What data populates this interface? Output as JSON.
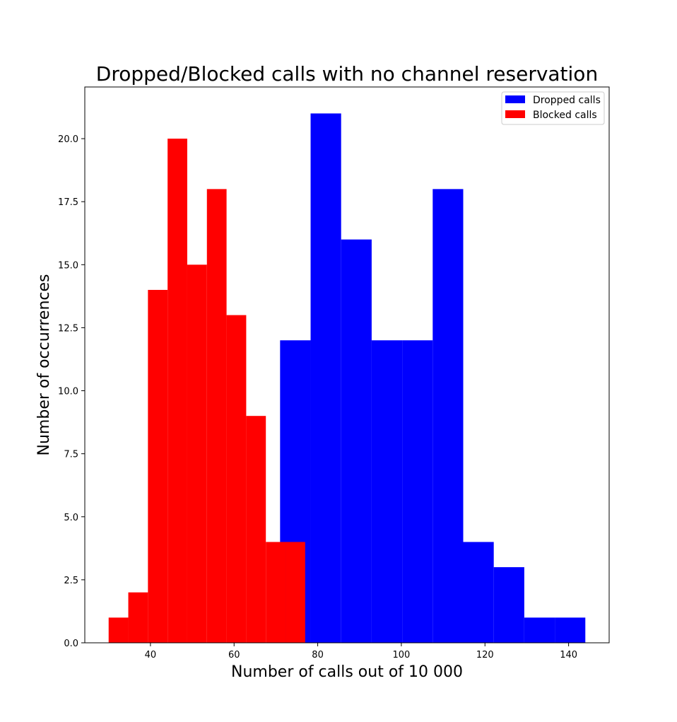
{
  "chart_data": {
    "type": "bar",
    "title": "Dropped/Blocked calls with no channel reservation",
    "xlabel": "Number of calls out of 10 000",
    "ylabel": "Number of occurrences",
    "xlim": [
      24.3,
      149.7
    ],
    "ylim": [
      0,
      22.05
    ],
    "xticks": [
      40,
      60,
      80,
      100,
      120,
      140
    ],
    "xtick_labels": [
      "40",
      "60",
      "80",
      "100",
      "120",
      "140"
    ],
    "yticks": [
      0,
      2.5,
      5,
      7.5,
      10,
      12.5,
      15,
      17.5,
      20
    ],
    "ytick_labels": [
      "0.0",
      "2.5",
      "5.0",
      "7.5",
      "10.0",
      "12.5",
      "15.0",
      "17.5",
      "20.0"
    ],
    "grid": false,
    "legend_position": "top-right",
    "series": [
      {
        "name": "Dropped calls",
        "color": "#0000ff",
        "bin_edges": [
          71.0,
          78.3,
          85.6,
          92.9,
          100.2,
          107.5,
          114.8,
          122.1,
          129.4,
          136.7,
          144.0
        ],
        "values": [
          12,
          21,
          16,
          12,
          12,
          18,
          4,
          3,
          1,
          1
        ]
      },
      {
        "name": "Blocked calls",
        "color": "#ff0000",
        "bin_edges": [
          30.0,
          34.7,
          39.4,
          44.1,
          48.8,
          53.5,
          58.2,
          62.9,
          67.6,
          72.3,
          77.0
        ],
        "values": [
          1,
          2,
          14,
          20,
          15,
          18,
          13,
          9,
          4,
          4
        ]
      }
    ]
  }
}
